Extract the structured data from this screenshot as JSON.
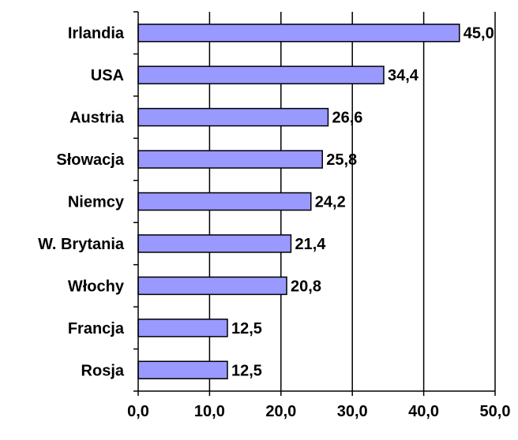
{
  "chart_data": {
    "type": "bar",
    "orientation": "horizontal",
    "title": "",
    "xlabel": "",
    "ylabel": "",
    "categories": [
      "Irlandia",
      "USA",
      "Austria",
      "Słowacja",
      "Niemcy",
      "W. Brytania",
      "Włochy",
      "Francja",
      "Rosja"
    ],
    "values": [
      45.0,
      34.4,
      26.6,
      25.8,
      24.2,
      21.4,
      20.8,
      12.5,
      12.5
    ],
    "value_labels": [
      "45,0",
      "34,4",
      "26,6",
      "25,8",
      "24,2",
      "21,4",
      "20,8",
      "12,5",
      "12,5"
    ],
    "xlim": [
      0,
      50
    ],
    "x_ticks": [
      0,
      10,
      20,
      30,
      40,
      50
    ],
    "x_tick_labels": [
      "0,0",
      "10,0",
      "20,0",
      "30,0",
      "40,0",
      "50,0"
    ],
    "grid": "vertical",
    "legend": "none",
    "colors": {
      "bar_fill": "#9999ff",
      "bar_stroke": "#000000",
      "grid": "#000000",
      "background": "#ffffff"
    }
  }
}
